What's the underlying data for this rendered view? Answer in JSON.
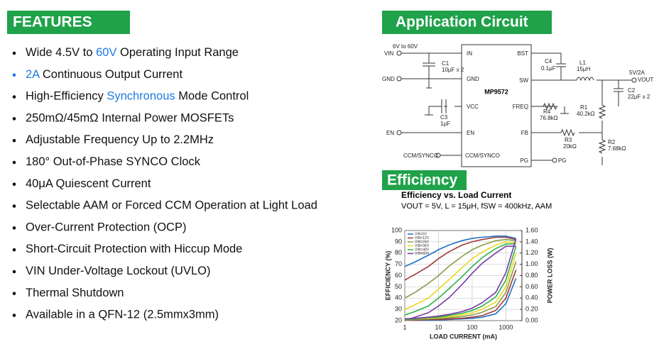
{
  "features": {
    "title": "FEATURES",
    "items": [
      {
        "parts": [
          "Wide 4.5V to ",
          "60V",
          " Operating Input Range"
        ],
        "highlight": [
          1
        ]
      },
      {
        "parts": [
          "2A",
          " Continuous Output Current"
        ],
        "highlight": [
          0
        ]
      },
      {
        "parts": [
          "High-Efficiency ",
          "Synchronous",
          " Mode Control"
        ],
        "highlight": [
          1
        ]
      },
      {
        "parts": [
          "250mΩ/45mΩ Internal Power MOSFETs"
        ],
        "highlight": []
      },
      {
        "parts": [
          "Adjustable Frequency Up to 2.2MHz"
        ],
        "highlight": []
      },
      {
        "parts": [
          "180°   Out-of-Phase SYNCO Clock"
        ],
        "highlight": []
      },
      {
        "parts": [
          "40μA Quiescent Current"
        ],
        "highlight": []
      },
      {
        "parts": [
          "Selectable AAM or Forced CCM Operation at Light Load"
        ],
        "highlight": []
      },
      {
        "parts": [
          "Over-Current Protection (OCP)"
        ],
        "highlight": []
      },
      {
        "parts": [
          "Short-Circuit Protection with Hiccup Mode"
        ],
        "highlight": []
      },
      {
        "parts": [
          "VIN Under-Voltage Lockout (UVLO)"
        ],
        "highlight": []
      },
      {
        "parts": [
          "Thermal Shutdown"
        ],
        "highlight": []
      },
      {
        "parts": [
          "Available in a QFN-12 (2.5mmx3mm)"
        ],
        "highlight": []
      }
    ]
  },
  "circuit": {
    "title": "Application Circuit",
    "chip": "MP9572",
    "vin_range": "6V to 60V",
    "vin": "VIN",
    "gnd": "GND",
    "en": "EN",
    "ccm": "CCM/SYNCO",
    "pg": "PG",
    "pins": {
      "in": "IN",
      "gnd": "GND",
      "vcc": "VCC",
      "en": "EN",
      "ccm": "CCM/SYNCO",
      "bst": "BST",
      "sw": "SW",
      "freq": "FREQ",
      "fb": "FB",
      "pg": "PG"
    },
    "c1": "C1",
    "c1v": "10μF x 2",
    "c3": "C3",
    "c3v": "1μF",
    "c4": "C4",
    "c4v": "0.1μF",
    "l1": "L1",
    "l1v": "15μH",
    "vout_spec": "5V/2A",
    "vout": "VOUT",
    "c2": "C2",
    "c2v": "22μF x 2",
    "r4": "R4",
    "r4v": "76.8kΩ",
    "r1": "R1",
    "r1v": "40.2kΩ",
    "r3": "R3",
    "r3v": "20kΩ",
    "r2": "R2",
    "r2v": "7.68kΩ"
  },
  "efficiency": {
    "title": "Efficiency",
    "chart_data": {
      "type": "line",
      "title": "Efficiency vs. Load Current",
      "subtitle": "VOUT = 5V, L = 15μH, fSW = 400kHz, AAM",
      "x_label": "LOAD CURRENT  (mA)",
      "y_label": "EFFICIENCY  (%)",
      "y2_label": "POWER LOSS  (W)",
      "x": [
        1,
        2,
        5,
        10,
        20,
        50,
        100,
        200,
        500,
        1000,
        2000
      ],
      "xlim": [
        1,
        3000
      ],
      "xticks": [
        1,
        10,
        100,
        1000
      ],
      "log_x": true,
      "ylim": [
        20,
        100
      ],
      "yticks": [
        20,
        30,
        40,
        50,
        60,
        70,
        80,
        90,
        100
      ],
      "y2lim": [
        0,
        1.6
      ],
      "y2ticks": [
        {
          "value": 0,
          "label": "0.00"
        },
        {
          "value": 0.2,
          "label": "0.20"
        },
        {
          "value": 0.4,
          "label": "0.40"
        },
        {
          "value": 0.6,
          "label": "0.60"
        },
        {
          "value": 0.8,
          "label": "0.80"
        },
        {
          "value": 1,
          "label": "1.00"
        },
        {
          "value": 1.2,
          "label": "1.20"
        },
        {
          "value": 1.4,
          "label": "1.40"
        },
        {
          "value": 1.6,
          "label": "1.60"
        }
      ],
      "grid": true,
      "series": [
        {
          "name": "VIN=6V",
          "color": "#1f6fc4",
          "values": [
            68,
            72,
            78,
            83,
            87,
            91,
            93,
            94,
            95,
            95,
            93
          ]
        },
        {
          "name": "VIN=12V",
          "color": "#9e3a3a",
          "values": [
            56,
            61,
            68,
            75,
            81,
            87,
            90,
            92,
            94,
            94,
            92
          ]
        },
        {
          "name": "VIN=24V",
          "color": "#8a9a4a",
          "values": [
            40,
            45,
            53,
            60,
            68,
            77,
            83,
            87,
            91,
            92,
            91
          ]
        },
        {
          "name": "VIN=36V",
          "color": "#e8d81a",
          "values": [
            30,
            34,
            40,
            48,
            56,
            67,
            75,
            81,
            87,
            90,
            89
          ]
        },
        {
          "name": "VIN=48V",
          "color": "#2db04a",
          "values": [
            25,
            28,
            33,
            40,
            48,
            59,
            68,
            76,
            84,
            88,
            88
          ]
        },
        {
          "name": "VIN=60V",
          "color": "#7a3aa8",
          "values": [
            20,
            23,
            27,
            33,
            40,
            52,
            62,
            71,
            80,
            86,
            86
          ]
        },
        {
          "color": "#1f6fc4",
          "axis": "y2",
          "values": [
            0.01,
            0.01,
            0.01,
            0.01,
            0.02,
            0.03,
            0.04,
            0.06,
            0.12,
            0.3,
            0.75
          ]
        },
        {
          "color": "#9e3a3a",
          "axis": "y2",
          "values": [
            0.01,
            0.01,
            0.02,
            0.02,
            0.03,
            0.04,
            0.06,
            0.09,
            0.18,
            0.4,
            0.9
          ]
        },
        {
          "color": "#8a9a4a",
          "axis": "y2",
          "values": [
            0.01,
            0.02,
            0.03,
            0.04,
            0.05,
            0.07,
            0.1,
            0.15,
            0.25,
            0.5,
            1.05
          ]
        },
        {
          "color": "#e8d81a",
          "axis": "y2",
          "values": [
            0.02,
            0.03,
            0.04,
            0.05,
            0.07,
            0.1,
            0.14,
            0.2,
            0.33,
            0.6,
            1.2
          ]
        },
        {
          "color": "#2db04a",
          "axis": "y2",
          "values": [
            0.02,
            0.03,
            0.05,
            0.06,
            0.09,
            0.13,
            0.18,
            0.26,
            0.42,
            0.72,
            1.32
          ]
        },
        {
          "color": "#7a3aa8",
          "axis": "y2",
          "values": [
            0.03,
            0.04,
            0.06,
            0.08,
            0.11,
            0.16,
            0.22,
            0.32,
            0.5,
            0.85,
            1.45
          ]
        }
      ]
    }
  }
}
